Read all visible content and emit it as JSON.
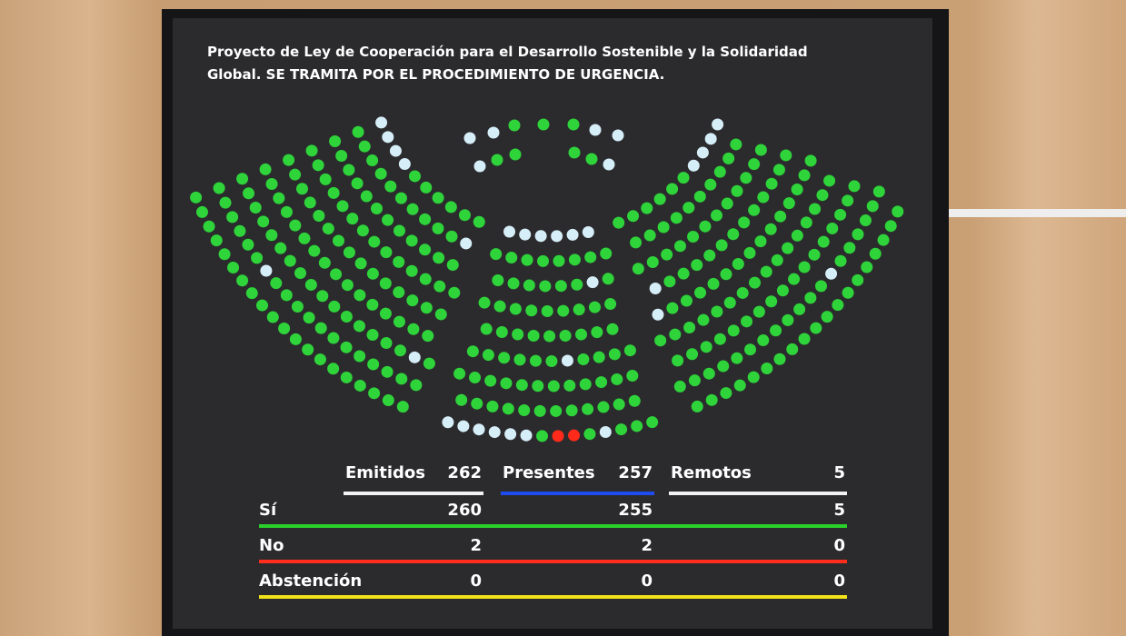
{
  "title": "Proyecto de Ley de Cooperación para el Desarrollo Sostenible y la Solidaridad Global. SE TRAMITA POR EL PROCEDIMIENTO DE URGENCIA.",
  "table": {
    "header": [
      {
        "label": "Emitidos",
        "value": 262
      },
      {
        "label": "Presentes",
        "value": 257
      },
      {
        "label": "Remotos",
        "value": 5
      }
    ],
    "rows": [
      {
        "label": "Sí",
        "values": [
          260,
          255,
          5
        ]
      },
      {
        "label": "No",
        "values": [
          2,
          2,
          0
        ]
      },
      {
        "label": "Abstención",
        "values": [
          0,
          0,
          0
        ]
      }
    ]
  }
}
